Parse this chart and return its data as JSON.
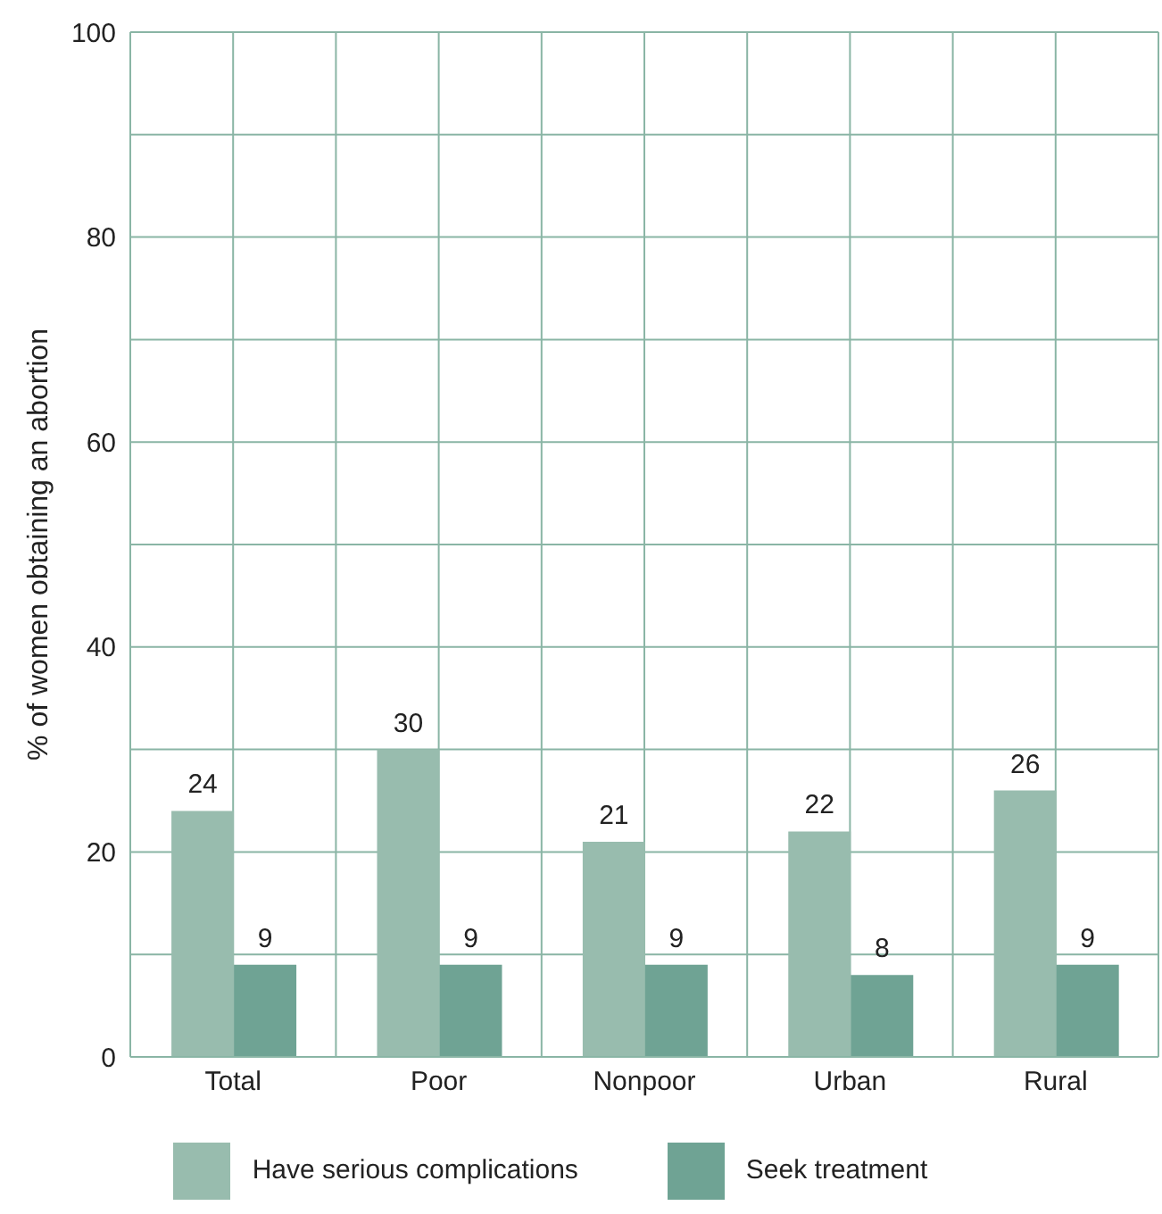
{
  "chart_data": {
    "type": "bar",
    "ylabel": "% of women obtaining an abortion",
    "categories": [
      "Total",
      "Poor",
      "Nonpoor",
      "Urban",
      "Rural"
    ],
    "series": [
      {
        "name": "Have serious complications",
        "color": "#98bcae",
        "values": [
          24,
          30,
          21,
          22,
          26
        ]
      },
      {
        "name": "Seek treatment",
        "color": "#6fa394",
        "values": [
          9,
          9,
          9,
          8,
          9
        ]
      }
    ],
    "ylim": [
      0,
      100
    ],
    "yticks": [
      0,
      {
        "value": 10,
        "label": null
      },
      20,
      {
        "value": 30,
        "label": null
      },
      40,
      {
        "value": 50,
        "label": null
      },
      60,
      {
        "value": 70,
        "label": null
      },
      80,
      {
        "value": 90,
        "label": null
      },
      100
    ],
    "grid": true,
    "legend": "bottom",
    "data_labels": true
  }
}
